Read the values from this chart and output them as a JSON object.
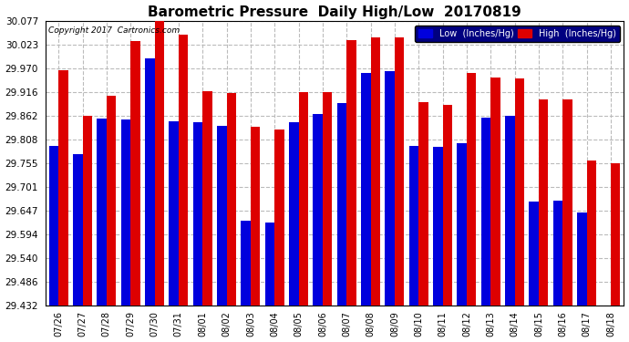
{
  "title": "Barometric Pressure  Daily High/Low  20170819",
  "copyright": "Copyright 2017  Cartronics.com",
  "dates": [
    "07/26",
    "07/27",
    "07/28",
    "07/29",
    "07/30",
    "07/31",
    "08/01",
    "08/02",
    "08/03",
    "08/04",
    "08/05",
    "08/06",
    "08/07",
    "08/08",
    "08/09",
    "08/10",
    "08/11",
    "08/12",
    "08/13",
    "08/14",
    "08/15",
    "08/16",
    "08/17",
    "08/18"
  ],
  "low_values": [
    29.795,
    29.775,
    29.855,
    29.853,
    29.993,
    29.85,
    29.848,
    29.84,
    29.625,
    29.621,
    29.848,
    29.866,
    29.892,
    29.96,
    29.963,
    29.793,
    29.791,
    29.8,
    29.858,
    29.862,
    29.668,
    29.67,
    29.643,
    29.432
  ],
  "high_values": [
    29.965,
    29.862,
    29.908,
    30.031,
    30.077,
    30.046,
    29.918,
    29.913,
    29.838,
    29.832,
    29.916,
    29.916,
    30.033,
    30.04,
    30.04,
    29.893,
    29.887,
    29.96,
    29.95,
    29.948,
    29.9,
    29.9,
    29.76,
    29.755
  ],
  "ylim_min": 29.432,
  "ylim_max": 30.077,
  "yticks": [
    29.432,
    29.486,
    29.54,
    29.594,
    29.647,
    29.701,
    29.755,
    29.808,
    29.862,
    29.916,
    29.97,
    30.023,
    30.077
  ],
  "low_color": "#0000dd",
  "high_color": "#dd0000",
  "bg_color": "#ffffff",
  "grid_color": "#bbbbbb",
  "title_fontsize": 11,
  "legend_low_label": "Low  (Inches/Hg)",
  "legend_high_label": "High  (Inches/Hg)"
}
